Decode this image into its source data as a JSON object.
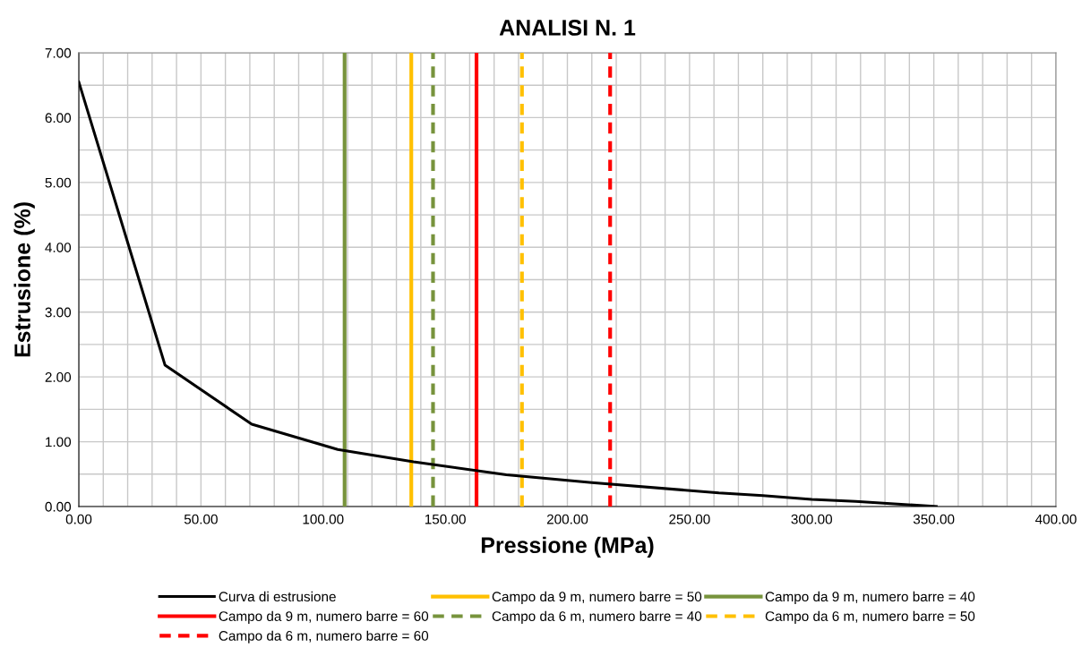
{
  "chart_data": {
    "type": "line",
    "title": "ANALISI N. 1",
    "xlabel": "Pressione (MPa)",
    "ylabel": "Estrusione (%)",
    "series": [
      {
        "name": "Curva di estrusione",
        "color": "#000000",
        "x": [
          0,
          35.3,
          70.8,
          106,
          137,
          175,
          210,
          262,
          280,
          300,
          318,
          351
        ],
        "values": [
          6.55,
          2.18,
          1.27,
          0.88,
          0.69,
          0.49,
          0.37,
          0.21,
          0.17,
          0.11,
          0.08,
          0.0
        ]
      },
      {
        "name": "Campo da 9 m, numero barre = 50",
        "color": "#ffc000",
        "line_style": "solid",
        "x": [
          136.1,
          136.1
        ],
        "values": [
          0,
          7
        ]
      },
      {
        "name": "Campo da 9 m, numero barre = 40",
        "color": "#77933c",
        "line_style": "solid",
        "x": [
          108.8,
          108.8
        ],
        "values": [
          0,
          7
        ]
      },
      {
        "name": "Campo da 9 m, numero barre = 60",
        "color": "#ff0000",
        "line_style": "solid",
        "x": [
          162.8,
          162.8
        ],
        "values": [
          0,
          7
        ]
      },
      {
        "name": "Campo da 6 m, numero barre = 40",
        "color": "#77933c",
        "line_style": "dashed",
        "x": [
          145.0,
          145.0
        ],
        "values": [
          0,
          7
        ]
      },
      {
        "name": "Campo da 6 m, numero barre = 50",
        "color": "#ffc000",
        "line_style": "dashed",
        "x": [
          181.4,
          181.4
        ],
        "values": [
          0,
          7
        ]
      },
      {
        "name": "Campo da 6 m, numero barre = 60",
        "color": "#ff0000",
        "line_style": "dashed",
        "x": [
          217.5,
          217.5
        ],
        "values": [
          0,
          7
        ]
      }
    ],
    "xlim": [
      0,
      400
    ],
    "ylim": [
      0,
      7
    ],
    "xticks": [
      {
        "value": 0,
        "label": "0.00"
      },
      {
        "value": 10,
        "label": null
      },
      {
        "value": 20,
        "label": null
      },
      {
        "value": 30,
        "label": null
      },
      {
        "value": 40,
        "label": null
      },
      {
        "value": 50,
        "label": "50.00"
      },
      {
        "value": 60,
        "label": null
      },
      {
        "value": 70,
        "label": null
      },
      {
        "value": 80,
        "label": null
      },
      {
        "value": 90,
        "label": null
      },
      {
        "value": 100,
        "label": "100.00"
      },
      {
        "value": 110,
        "label": null
      },
      {
        "value": 120,
        "label": null
      },
      {
        "value": 130,
        "label": null
      },
      {
        "value": 140,
        "label": null
      },
      {
        "value": 150,
        "label": "150.00"
      },
      {
        "value": 160,
        "label": null
      },
      {
        "value": 170,
        "label": null
      },
      {
        "value": 180,
        "label": null
      },
      {
        "value": 190,
        "label": null
      },
      {
        "value": 200,
        "label": "200.00"
      },
      {
        "value": 210,
        "label": null
      },
      {
        "value": 220,
        "label": null
      },
      {
        "value": 230,
        "label": null
      },
      {
        "value": 240,
        "label": null
      },
      {
        "value": 250,
        "label": "250.00"
      },
      {
        "value": 260,
        "label": null
      },
      {
        "value": 270,
        "label": null
      },
      {
        "value": 280,
        "label": null
      },
      {
        "value": 290,
        "label": null
      },
      {
        "value": 300,
        "label": "300.00"
      },
      {
        "value": 310,
        "label": null
      },
      {
        "value": 320,
        "label": null
      },
      {
        "value": 330,
        "label": null
      },
      {
        "value": 340,
        "label": null
      },
      {
        "value": 350,
        "label": "350.00"
      },
      {
        "value": 360,
        "label": null
      },
      {
        "value": 370,
        "label": null
      },
      {
        "value": 380,
        "label": null
      },
      {
        "value": 390,
        "label": null
      },
      {
        "value": 400,
        "label": "400.00"
      }
    ],
    "yticks": [
      {
        "value": 0,
        "label": "0.00"
      },
      {
        "value": 0.5,
        "label": null
      },
      {
        "value": 1,
        "label": "1.00"
      },
      {
        "value": 1.5,
        "label": null
      },
      {
        "value": 2,
        "label": "2.00"
      },
      {
        "value": 2.5,
        "label": null
      },
      {
        "value": 3,
        "label": "3.00"
      },
      {
        "value": 3.5,
        "label": null
      },
      {
        "value": 4,
        "label": "4.00"
      },
      {
        "value": 4.5,
        "label": null
      },
      {
        "value": 5,
        "label": "5.00"
      },
      {
        "value": 5.5,
        "label": null
      },
      {
        "value": 6,
        "label": "6.00"
      },
      {
        "value": 6.5,
        "label": null
      },
      {
        "value": 7,
        "label": "7.00"
      }
    ],
    "grid": true,
    "legend": "bottom",
    "marker": "none",
    "line_style": "solid"
  }
}
